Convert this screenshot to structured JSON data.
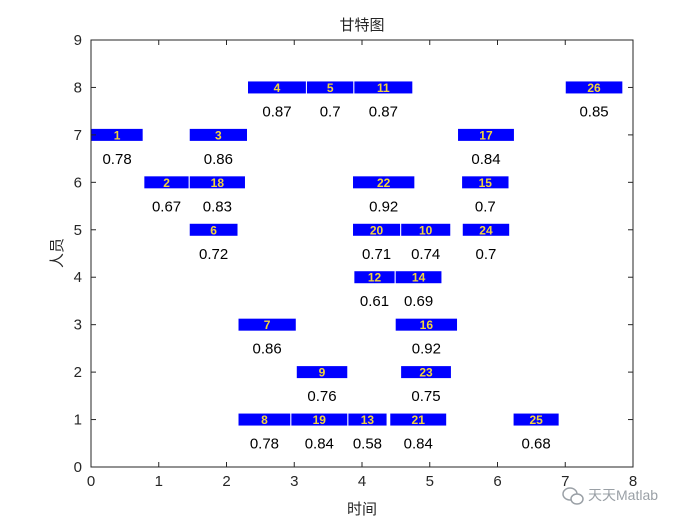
{
  "chart_data": {
    "type": "gantt",
    "title": "甘特图",
    "xlabel": "时间",
    "ylabel": "人员",
    "xlim": [
      0,
      8
    ],
    "ylim": [
      0,
      9
    ],
    "xticks": [
      "0",
      "1",
      "2",
      "3",
      "4",
      "5",
      "6",
      "7",
      "8"
    ],
    "yticks": [
      "0",
      "1",
      "2",
      "3",
      "4",
      "5",
      "6",
      "7",
      "8",
      "9"
    ],
    "bar_color": "#0000ff",
    "bar_label_color": "#f2d43c",
    "tasks": [
      {
        "id": "1",
        "person": 7,
        "start": 0.0,
        "end": 0.77,
        "value": "0.78"
      },
      {
        "id": "2",
        "person": 6,
        "start": 0.78,
        "end": 1.45,
        "value": "0.67"
      },
      {
        "id": "3",
        "person": 7,
        "start": 1.45,
        "end": 2.31,
        "value": "0.86"
      },
      {
        "id": "4",
        "person": 8,
        "start": 2.31,
        "end": 3.18,
        "value": "0.87"
      },
      {
        "id": "5",
        "person": 8,
        "start": 3.18,
        "end": 3.88,
        "value": "0.7"
      },
      {
        "id": "6",
        "person": 5,
        "start": 1.45,
        "end": 2.17,
        "value": "0.72"
      },
      {
        "id": "7",
        "person": 3,
        "start": 2.17,
        "end": 3.03,
        "value": "0.86"
      },
      {
        "id": "8",
        "person": 1,
        "start": 2.17,
        "end": 2.95,
        "value": "0.78"
      },
      {
        "id": "9",
        "person": 2,
        "start": 3.03,
        "end": 3.79,
        "value": "0.76"
      },
      {
        "id": "10",
        "person": 5,
        "start": 4.57,
        "end": 5.31,
        "value": "0.74"
      },
      {
        "id": "11",
        "person": 8,
        "start": 3.88,
        "end": 4.75,
        "value": "0.87"
      },
      {
        "id": "12",
        "person": 4,
        "start": 3.88,
        "end": 4.49,
        "value": "0.61"
      },
      {
        "id": "13",
        "person": 1,
        "start": 3.79,
        "end": 4.37,
        "value": "0.58"
      },
      {
        "id": "14",
        "person": 4,
        "start": 4.49,
        "end": 5.18,
        "value": "0.69"
      },
      {
        "id": "15",
        "person": 6,
        "start": 5.47,
        "end": 6.17,
        "value": "0.7"
      },
      {
        "id": "16",
        "person": 3,
        "start": 4.49,
        "end": 5.41,
        "value": "0.92"
      },
      {
        "id": "17",
        "person": 7,
        "start": 5.41,
        "end": 6.25,
        "value": "0.84"
      },
      {
        "id": "18",
        "person": 6,
        "start": 1.45,
        "end": 2.28,
        "value": "0.83"
      },
      {
        "id": "19",
        "person": 1,
        "start": 2.95,
        "end": 3.79,
        "value": "0.84"
      },
      {
        "id": "20",
        "person": 5,
        "start": 3.86,
        "end": 4.57,
        "value": "0.71"
      },
      {
        "id": "21",
        "person": 1,
        "start": 4.41,
        "end": 5.25,
        "value": "0.84"
      },
      {
        "id": "22",
        "person": 6,
        "start": 3.86,
        "end": 4.78,
        "value": "0.92"
      },
      {
        "id": "23",
        "person": 2,
        "start": 4.57,
        "end": 5.32,
        "value": "0.75"
      },
      {
        "id": "24",
        "person": 5,
        "start": 5.48,
        "end": 6.18,
        "value": "0.7"
      },
      {
        "id": "25",
        "person": 1,
        "start": 6.23,
        "end": 6.91,
        "value": "0.68"
      },
      {
        "id": "26",
        "person": 8,
        "start": 7.0,
        "end": 7.85,
        "value": "0.85"
      }
    ]
  },
  "watermark": {
    "text": "天天Matlab",
    "icon": "wechat-icon"
  }
}
